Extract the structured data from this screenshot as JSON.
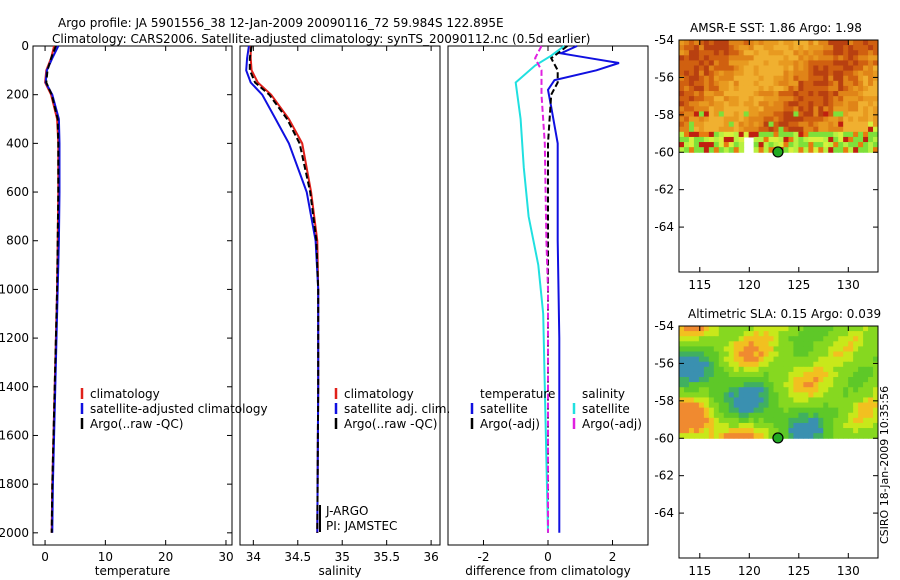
{
  "title_line1": "Argo profile: JA 5901556_38 12-Jan-2009 20090116_72 59.984S 122.895E",
  "title_line2": "Climatology: CARS2006. Satellite-adjusted climatology: synTS_20090112.nc (0.5d earlier)",
  "side_stamp": "CSIRO 18-Jan-2009 10:35:56",
  "colors": {
    "climatology": "#e0201a",
    "satellite": "#1010e0",
    "argo": "#000000",
    "satellite_sal": "#20e0e0",
    "argo_sal": "#e020e0"
  },
  "chart_data": [
    {
      "type": "line",
      "name": "temperature-panel",
      "xlabel": "temperature",
      "ylabel": "",
      "xlim": [
        -2,
        31
      ],
      "ylim": [
        2050,
        0
      ],
      "xticks": [
        0,
        10,
        20,
        30
      ],
      "yticks": [
        0,
        200,
        400,
        600,
        800,
        1000,
        1200,
        1400,
        1600,
        1800,
        2000
      ],
      "legend": [
        "climatology",
        "satellite-adjusted climatology",
        "Argo(..raw -QC)"
      ],
      "series": [
        {
          "name": "climatology",
          "color": "#e0201a",
          "points": [
            [
              1.5,
              0
            ],
            [
              1.0,
              50
            ],
            [
              0.2,
              100
            ],
            [
              0.0,
              150
            ],
            [
              1.0,
              200
            ],
            [
              2.0,
              300
            ],
            [
              2.2,
              400
            ],
            [
              2.2,
              600
            ],
            [
              2.1,
              800
            ],
            [
              2.0,
              1000
            ],
            [
              1.8,
              1200
            ],
            [
              1.6,
              1400
            ],
            [
              1.4,
              1600
            ],
            [
              1.2,
              1800
            ],
            [
              1.1,
              2000
            ]
          ]
        },
        {
          "name": "satellite-adjusted climatology",
          "color": "#1010e0",
          "points": [
            [
              2.2,
              0
            ],
            [
              1.2,
              50
            ],
            [
              0.3,
              100
            ],
            [
              0.1,
              150
            ],
            [
              1.2,
              200
            ],
            [
              2.3,
              300
            ],
            [
              2.4,
              400
            ],
            [
              2.4,
              600
            ],
            [
              2.3,
              800
            ],
            [
              2.1,
              1000
            ],
            [
              1.9,
              1200
            ],
            [
              1.7,
              1400
            ],
            [
              1.5,
              1600
            ],
            [
              1.3,
              1800
            ],
            [
              1.2,
              2000
            ]
          ]
        },
        {
          "name": "Argo(..raw -QC)",
          "color": "#000000",
          "dash": true,
          "points": [
            [
              1.8,
              0
            ],
            [
              1.0,
              50
            ],
            [
              0.4,
              100
            ],
            [
              0.2,
              150
            ],
            [
              1.1,
              200
            ],
            [
              2.1,
              300
            ],
            [
              2.2,
              400
            ],
            [
              2.2,
              600
            ],
            [
              2.1,
              800
            ],
            [
              2.0,
              1000
            ],
            [
              1.8,
              1200
            ],
            [
              1.6,
              1400
            ],
            [
              1.4,
              1600
            ],
            [
              1.2,
              1800
            ],
            [
              1.1,
              2000
            ]
          ]
        }
      ]
    },
    {
      "type": "line",
      "name": "salinity-panel",
      "xlabel": "salinity",
      "ylabel": "",
      "xlim": [
        33.85,
        36.1
      ],
      "ylim": [
        2050,
        0
      ],
      "xticks": [
        34,
        34.5,
        35,
        35.5,
        36
      ],
      "xticklabels": [
        "34",
        "34.5",
        "35",
        "35.5",
        "36"
      ],
      "legend": [
        "climatology",
        "satellite adj. clim.",
        "Argo(..raw -QC)"
      ],
      "annotations": [
        "J-ARGO",
        "PI: JAMSTEC"
      ],
      "series": [
        {
          "name": "climatology",
          "color": "#e0201a",
          "points": [
            [
              33.97,
              0
            ],
            [
              33.97,
              50
            ],
            [
              33.98,
              100
            ],
            [
              34.05,
              150
            ],
            [
              34.2,
              200
            ],
            [
              34.4,
              300
            ],
            [
              34.55,
              400
            ],
            [
              34.65,
              600
            ],
            [
              34.72,
              800
            ],
            [
              34.73,
              1000
            ],
            [
              34.73,
              1400
            ],
            [
              34.72,
              2000
            ]
          ]
        },
        {
          "name": "satellite adj. clim.",
          "color": "#1010e0",
          "points": [
            [
              33.95,
              0
            ],
            [
              33.93,
              50
            ],
            [
              33.92,
              100
            ],
            [
              33.97,
              150
            ],
            [
              34.1,
              200
            ],
            [
              34.25,
              300
            ],
            [
              34.4,
              400
            ],
            [
              34.6,
              600
            ],
            [
              34.7,
              800
            ],
            [
              34.73,
              1000
            ],
            [
              34.73,
              1400
            ],
            [
              34.72,
              2000
            ]
          ]
        },
        {
          "name": "Argo(..raw -QC)",
          "color": "#000000",
          "dash": true,
          "points": [
            [
              33.98,
              0
            ],
            [
              33.96,
              50
            ],
            [
              33.96,
              100
            ],
            [
              34.02,
              150
            ],
            [
              34.18,
              200
            ],
            [
              34.38,
              300
            ],
            [
              34.52,
              400
            ],
            [
              34.64,
              600
            ],
            [
              34.71,
              800
            ],
            [
              34.73,
              1000
            ],
            [
              34.73,
              1400
            ],
            [
              34.72,
              2000
            ]
          ]
        }
      ]
    },
    {
      "type": "line",
      "name": "difference-panel",
      "xlabel": "difference from climatology",
      "ylabel": "",
      "xlim": [
        -3.1,
        3.1
      ],
      "ylim": [
        2050,
        0
      ],
      "xticks": [
        -2,
        0,
        2
      ],
      "legend_groups": [
        {
          "heading": "temperature",
          "items": [
            "satellite",
            "Argo(-adj)"
          ]
        },
        {
          "heading": "salinity",
          "items": [
            "satellite",
            "Argo(-adj)"
          ]
        }
      ],
      "series": [
        {
          "name": "temperature satellite",
          "color": "#1010e0",
          "points": [
            [
              0.9,
              0
            ],
            [
              0.4,
              30
            ],
            [
              1.3,
              50
            ],
            [
              2.2,
              70
            ],
            [
              1.5,
              100
            ],
            [
              0.2,
              140
            ],
            [
              0.0,
              180
            ],
            [
              0.1,
              250
            ],
            [
              0.3,
              400
            ],
            [
              0.3,
              800
            ],
            [
              0.35,
              1200
            ],
            [
              0.35,
              1600
            ],
            [
              0.35,
              2000
            ]
          ]
        },
        {
          "name": "temperature Argo(-adj)",
          "color": "#000000",
          "dash": true,
          "points": [
            [
              0.6,
              0
            ],
            [
              0.1,
              50
            ],
            [
              0.3,
              100
            ],
            [
              0.3,
              150
            ],
            [
              0.1,
              200
            ],
            [
              0.0,
              400
            ],
            [
              0.0,
              800
            ],
            [
              0.0,
              1200
            ],
            [
              0.0,
              1600
            ],
            [
              0.0,
              2000
            ]
          ]
        },
        {
          "name": "salinity satellite",
          "color": "#20e0e0",
          "points": [
            [
              0.5,
              0
            ],
            [
              0.1,
              40
            ],
            [
              -0.4,
              80
            ],
            [
              -1.0,
              150
            ],
            [
              -0.85,
              300
            ],
            [
              -0.75,
              500
            ],
            [
              -0.6,
              700
            ],
            [
              -0.3,
              900
            ],
            [
              -0.15,
              1100
            ],
            [
              -0.1,
              1400
            ],
            [
              0.0,
              2000
            ]
          ]
        },
        {
          "name": "salinity Argo(-adj)",
          "color": "#e020e0",
          "dash": true,
          "points": [
            [
              -0.2,
              0
            ],
            [
              -0.4,
              50
            ],
            [
              -0.2,
              100
            ],
            [
              -0.2,
              200
            ],
            [
              -0.1,
              400
            ],
            [
              -0.05,
              800
            ],
            [
              0.0,
              1000
            ],
            [
              0.0,
              2000
            ]
          ]
        }
      ]
    },
    {
      "type": "heatmap",
      "name": "amsr-e-sst-map",
      "title": "AMSR-E SST: 1.86 Argo: 1.98",
      "xlim": [
        112.9,
        133
      ],
      "ylim": [
        -66.4,
        -54
      ],
      "xticks": [
        115,
        120,
        125,
        130
      ],
      "yticks": [
        -54,
        -56,
        -58,
        -60,
        -62,
        -64
      ],
      "data_lat_range": [
        -60,
        -54
      ],
      "marker": {
        "lon": 122.895,
        "lat": -59.984
      },
      "colormap": "orange-red SST field, green/yellow patches near ice edge, white = no data"
    },
    {
      "type": "heatmap",
      "name": "altimetric-sla-map",
      "title": "Altimetric SLA: 0.15 Argo: 0.039",
      "xlim": [
        112.9,
        133
      ],
      "ylim": [
        -66.4,
        -54
      ],
      "xticks": [
        115,
        120,
        125,
        130
      ],
      "yticks": [
        -54,
        -56,
        -58,
        -60,
        -62,
        -64
      ],
      "data_lat_range": [
        -60,
        -54
      ],
      "marker": {
        "lon": 122.895,
        "lat": -59.984
      },
      "colormap": "green field with yellow, orange and blue patches, white = no data"
    }
  ]
}
